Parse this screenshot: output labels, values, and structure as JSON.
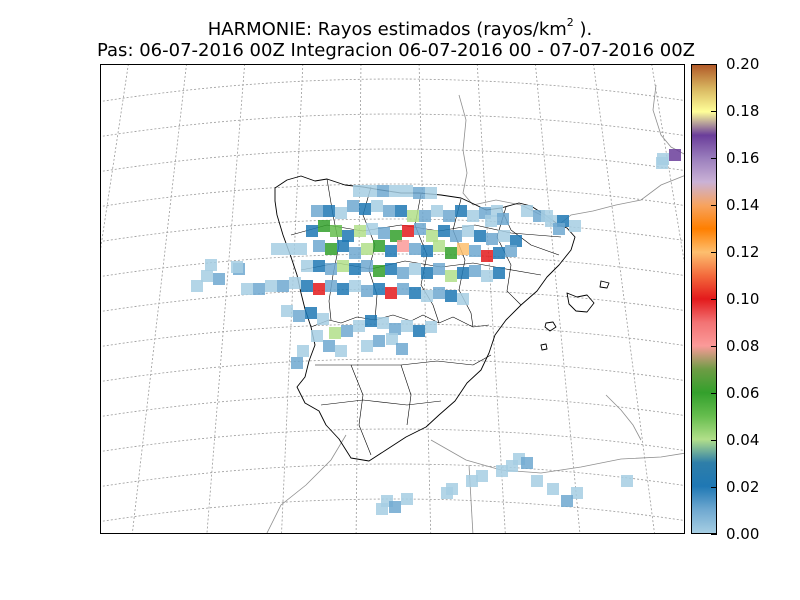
{
  "title": {
    "line1_main": "HARMONIE: Rayos estimados  (rayos/km",
    "line1_sup": "2",
    "line1_tail": " ).",
    "line2": "Pas: 06-07-2016 00Z Integracion 06-07-2016 00 - 07-07-2016 00Z"
  },
  "colorbar": {
    "min": 0.0,
    "max": 0.2,
    "labels": [
      "0.00",
      "0.02",
      "0.04",
      "0.06",
      "0.08",
      "0.10",
      "0.12",
      "0.14",
      "0.16",
      "0.18",
      "0.20"
    ]
  },
  "map": {
    "region": "Iberian Peninsula",
    "graticule": "dotted",
    "coastline_color": "#000000",
    "background": "#ffffff"
  }
}
